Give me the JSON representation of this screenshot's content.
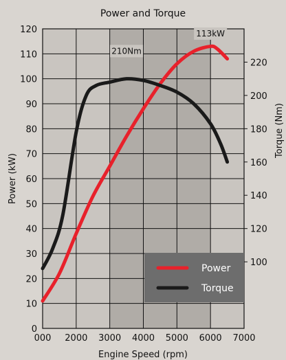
{
  "chart_data": {
    "type": "line",
    "title": "Power and Torque",
    "xlabel": "Engine Speed (rpm)",
    "ylabel": "Power (kW)",
    "y2label": "Torque (Nm)",
    "xlim": [
      1000,
      7000
    ],
    "ylim": [
      0,
      120
    ],
    "y2lim": [
      60,
      240
    ],
    "x_tick_labels": [
      "000",
      "2000",
      "3000",
      "4000",
      "5000",
      "6000",
      "7000"
    ],
    "y_ticks": [
      0,
      10,
      20,
      30,
      40,
      50,
      60,
      70,
      80,
      90,
      100,
      110,
      120
    ],
    "y2_ticks": [
      100,
      120,
      140,
      160,
      180,
      200,
      220
    ],
    "grid": true,
    "legend_position": "bottom-right",
    "colors": {
      "power": "#e8212b",
      "torque": "#1a1a1a",
      "legend_bg": "#6d6d6d",
      "plot_bg": "#c9c5c0",
      "shade": "#9a9792"
    },
    "series": [
      {
        "name": "Power",
        "axis": "left",
        "x": [
          1000,
          1500,
          2000,
          2500,
          3000,
          3500,
          4000,
          4500,
          5000,
          5500,
          6000,
          6200,
          6500
        ],
        "values": [
          11,
          22,
          38,
          53,
          65,
          77,
          88,
          98,
          106,
          111,
          113,
          112,
          108
        ]
      },
      {
        "name": "Torque",
        "axis": "right",
        "x": [
          1000,
          1300,
          1600,
          2000,
          2300,
          2600,
          3000,
          3500,
          4000,
          4500,
          5000,
          5500,
          6000,
          6300,
          6500
        ],
        "values": [
          96,
          108,
          128,
          178,
          200,
          206,
          208,
          210,
          209,
          206,
          202,
          195,
          183,
          171,
          160
        ]
      }
    ],
    "annotations": [
      {
        "text": "210Nm",
        "x": 3500,
        "y": 110
      },
      {
        "text": "113kW",
        "x": 6000,
        "y": 117
      }
    ]
  }
}
